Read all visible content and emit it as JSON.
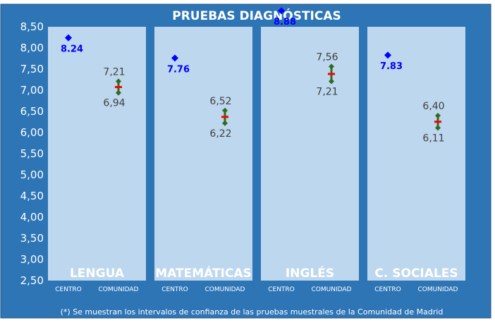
{
  "chart_data": {
    "type": "scatter",
    "title": "PRUEBAS DIAGNÓSTICAS",
    "footnote": "(*) Se muestran los intervalos de confianza de las pruebas muestrales de la Comunidad de Madrid",
    "ylim": [
      2.5,
      8.5
    ],
    "yticks": [
      "2,50",
      "3,00",
      "3,50",
      "4,00",
      "4,50",
      "5,00",
      "5,50",
      "6,00",
      "6,50",
      "7,00",
      "7,50",
      "8,00",
      "8,50"
    ],
    "x_categories": [
      "CENTRO",
      "COMUNIDAD"
    ],
    "grid": false,
    "panels": [
      {
        "subject": "LENGUA",
        "centro": 8.24,
        "centro_label": "8.24",
        "comunidad_low": 6.94,
        "comunidad_high": 7.21,
        "comunidad_mid": 7.075,
        "low_label": "6,94",
        "high_label": "7,21"
      },
      {
        "subject": "MATEMÁTICAS",
        "centro": 7.76,
        "centro_label": "7.76",
        "comunidad_low": 6.22,
        "comunidad_high": 6.52,
        "comunidad_mid": 6.37,
        "low_label": "6,22",
        "high_label": "6,52"
      },
      {
        "subject": "INGLÉS",
        "centro": 8.88,
        "centro_label": "8.88",
        "comunidad_low": 7.21,
        "comunidad_high": 7.56,
        "comunidad_mid": 7.385,
        "low_label": "7,21",
        "high_label": "7,56"
      },
      {
        "subject": "C. SOCIALES",
        "centro": 7.83,
        "centro_label": "7.83",
        "comunidad_low": 6.11,
        "comunidad_high": 6.4,
        "comunidad_mid": 6.255,
        "low_label": "6,11",
        "high_label": "6,40"
      }
    ]
  },
  "colors": {
    "background": "#2e75b6",
    "panel": "#bdd7ee",
    "centro_point": "#0000ff",
    "interval": "#2e6b1f",
    "mean": "#ff0000",
    "text_light": "#ffffff",
    "text_dark": "#404040"
  }
}
